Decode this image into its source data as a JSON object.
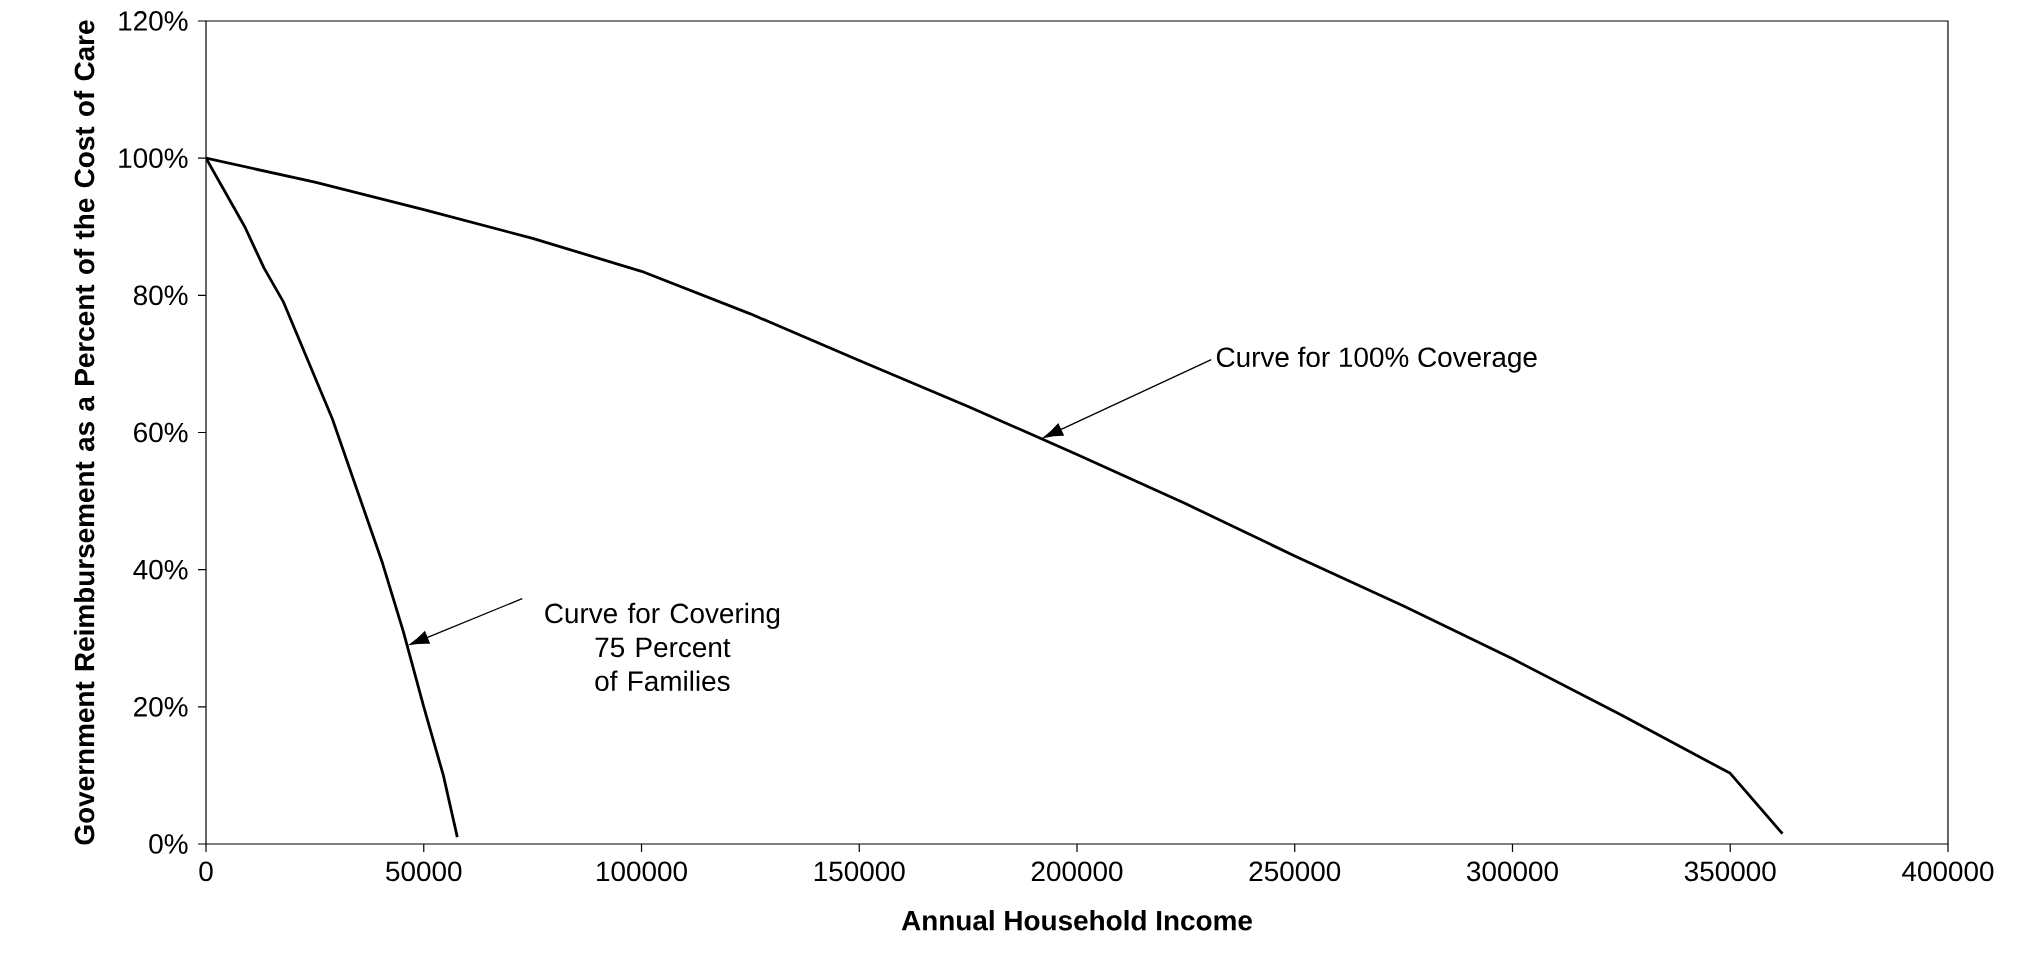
{
  "chart_data": {
    "type": "line",
    "xlabel": "Annual Household Income",
    "ylabel": "Government Reimbursement as a Percent of the Cost of Care",
    "series": [
      {
        "color": "#000000",
        "x": [
          0,
          25000,
          50000,
          75000,
          100000,
          125000,
          150000,
          175000,
          200000,
          225000,
          250000,
          275000,
          300000,
          325000,
          350000,
          362000
        ],
        "values": [
          100,
          96.5,
          92.5,
          88.3,
          83.5,
          77.3,
          70.5,
          63.8,
          56.8,
          49.6,
          42,
          34.7,
          27,
          18.8,
          10.3,
          1.5
        ]
      },
      {
        "color": "#000000",
        "x": [
          0,
          8900,
          13300,
          17800,
          29000,
          40500,
          45300,
          50000,
          54500,
          57700
        ],
        "values": [
          100,
          90,
          84,
          79,
          62,
          41,
          31,
          20,
          10,
          1
        ]
      }
    ],
    "xlim": [
      0,
      400000
    ],
    "xticks": [
      0,
      50000,
      100000,
      150000,
      200000,
      250000,
      300000,
      350000,
      400000
    ],
    "ylim": [
      0,
      120
    ],
    "yticks": [
      {
        "value": 0,
        "label": "0%"
      },
      {
        "value": 20,
        "label": "20%"
      },
      {
        "value": 40,
        "label": "40%"
      },
      {
        "value": 60,
        "label": "60%"
      },
      {
        "value": 80,
        "label": "80%"
      },
      {
        "value": 100,
        "label": "100%"
      },
      {
        "value": 120,
        "label": "120%"
      }
    ],
    "annotations": [
      "Curve for 100% Coverage",
      "Curve for Covering 75 Percent of Families"
    ],
    "marker": "none",
    "line_style": "solid"
  }
}
